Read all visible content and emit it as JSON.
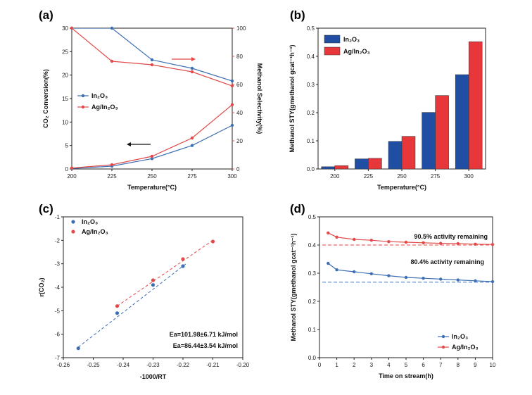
{
  "colors": {
    "blue": "#3d6fb5",
    "red": "#e24a4a",
    "bar_blue": "#1f4ea3",
    "bar_red": "#e8373a",
    "axis": "#222222"
  },
  "chart_data": [
    {
      "panel": "(a)",
      "type": "line",
      "xlabel": "Temperature(°C)",
      "ylabel_left": "CO₂ Conversion(%)",
      "ylabel_right": "Methanol Selectivity(%)",
      "xlim": [
        200,
        300
      ],
      "ylim_left": [
        0,
        30
      ],
      "ylim_right": [
        0,
        100
      ],
      "x_ticks": [
        "200",
        "225",
        "250",
        "275",
        "300"
      ],
      "y_ticks_left": [
        "0",
        "5",
        "10",
        "15",
        "20",
        "25",
        "30"
      ],
      "y_ticks_right": [
        "0",
        "20",
        "40",
        "60",
        "80",
        "100"
      ],
      "x": [
        200,
        225,
        250,
        275,
        300
      ],
      "series": [
        {
          "name": "In₂O₃",
          "color": "#3d6fb5",
          "axis": "left",
          "values": [
            0.1,
            0.6,
            2.2,
            5.0,
            9.3
          ]
        },
        {
          "name": "Ag/In₂O₃",
          "color": "#e24a4a",
          "axis": "left",
          "values": [
            0.2,
            0.9,
            2.7,
            6.6,
            13.7
          ]
        },
        {
          "name": "In₂O₃",
          "color": "#3d6fb5",
          "axis": "right",
          "values": [
            100,
            100,
            77.5,
            71.5,
            62.5
          ]
        },
        {
          "name": "Ag/In₂O₃",
          "color": "#e24a4a",
          "axis": "right",
          "values": [
            100,
            76.5,
            74,
            69,
            59
          ]
        }
      ],
      "legend": [
        "In₂O₃",
        "Ag/In₂O₃"
      ],
      "legend_position": "center-left"
    },
    {
      "panel": "(b)",
      "type": "bar",
      "xlabel": "Temperature(°C)",
      "ylabel": "Methanol STY(gmethanol gcat⁻¹h⁻¹)",
      "ylim": [
        0,
        0.5
      ],
      "y_ticks": [
        "0.0",
        "0.1",
        "0.2",
        "0.3",
        "0.4",
        "0.5"
      ],
      "categories": [
        "200",
        "225",
        "250",
        "275",
        "300"
      ],
      "series": [
        {
          "name": "In₂O₃",
          "color": "#1f4ea3",
          "values": [
            0.008,
            0.036,
            0.098,
            0.201,
            0.335
          ]
        },
        {
          "name": "Ag/In₂O₃",
          "color": "#e8373a",
          "values": [
            0.012,
            0.038,
            0.116,
            0.261,
            0.452
          ]
        }
      ],
      "legend_position": "top-left"
    },
    {
      "panel": "(c)",
      "type": "scatter",
      "xlabel": "-1000/RT",
      "ylabel": "r(CO₂)",
      "xlim": [
        -0.26,
        -0.2
      ],
      "ylim": [
        -7,
        -1
      ],
      "x_ticks": [
        "-0.26",
        "-0.25",
        "-0.24",
        "-0.23",
        "-0.22",
        "-0.21",
        "-0.20"
      ],
      "y_ticks": [
        "-7",
        "-6",
        "-5",
        "-4",
        "-3",
        "-2",
        "-1"
      ],
      "series": [
        {
          "name": "In₂O₃",
          "color": "#3d6fb5",
          "points": [
            [
              -0.255,
              -6.6
            ],
            [
              -0.242,
              -5.1
            ],
            [
              -0.23,
              -3.9
            ],
            [
              -0.22,
              -3.1
            ]
          ],
          "fit": [
            [
              -0.255,
              -6.55
            ],
            [
              -0.219,
              -3.0
            ]
          ]
        },
        {
          "name": "Ag/In₂O₃",
          "color": "#e24a4a",
          "points": [
            [
              -0.242,
              -4.8
            ],
            [
              -0.23,
              -3.7
            ],
            [
              -0.22,
              -2.8
            ],
            [
              -0.21,
              -2.05
            ]
          ],
          "fit": [
            [
              -0.242,
              -4.8
            ],
            [
              -0.21,
              -2.0
            ]
          ]
        }
      ],
      "annotations": [
        {
          "text": "Ea=101.98±6.71 kJ/mol",
          "color": "#3d6fb5"
        },
        {
          "text": "Ea=86.44±3.54 kJ/mol",
          "color": "#e24a4a"
        }
      ],
      "legend_position": "top-left"
    },
    {
      "panel": "(d)",
      "type": "line",
      "xlabel": "Time on stream(h)",
      "ylabel": "Methanol STY(gmethanol gcat⁻¹h⁻¹)",
      "xlim": [
        0,
        10
      ],
      "ylim": [
        0,
        0.5
      ],
      "x_ticks": [
        "0",
        "1",
        "2",
        "3",
        "4",
        "5",
        "6",
        "7",
        "8",
        "9",
        "10"
      ],
      "y_ticks": [
        "0.0",
        "0.1",
        "0.2",
        "0.3",
        "0.4",
        "0.5"
      ],
      "x": [
        0.5,
        1,
        2,
        3,
        4,
        5,
        6,
        7,
        8,
        9,
        10
      ],
      "series": [
        {
          "name": "In₂O₃",
          "color": "#3d6fb5",
          "values": [
            0.335,
            0.312,
            0.305,
            0.298,
            0.291,
            0.285,
            0.282,
            0.279,
            0.276,
            0.273,
            0.27
          ],
          "reference": 0.268
        },
        {
          "name": "Ag/In₂O₃",
          "color": "#e24a4a",
          "values": [
            0.443,
            0.428,
            0.42,
            0.417,
            0.412,
            0.41,
            0.408,
            0.406,
            0.405,
            0.403,
            0.402
          ],
          "reference": 0.4
        }
      ],
      "annotations": [
        {
          "text": "90.5% activity remaining",
          "color": "#e24a4a"
        },
        {
          "text": "80.4% activity remaining",
          "color": "#3d6fb5"
        }
      ],
      "legend_position": "bottom-right"
    }
  ]
}
